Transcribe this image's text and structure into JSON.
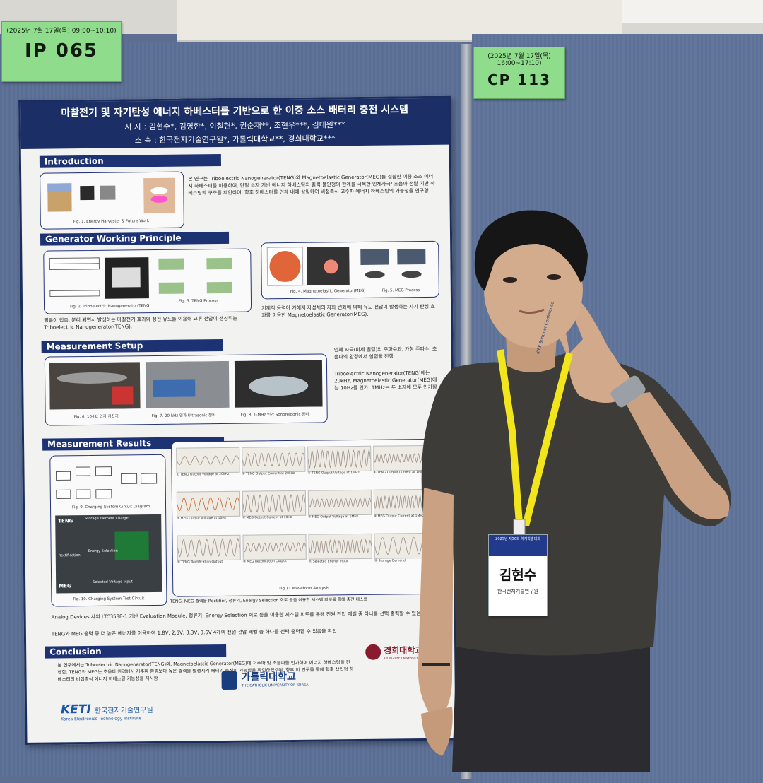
{
  "tags": {
    "left": {
      "date": "(2025년 7월 17일(목) 09:00~10:10)",
      "code": "IP 065"
    },
    "right": {
      "date": "(2025년 7월 17일(목) 16:00~17:10)",
      "code": "CP 113"
    }
  },
  "poster": {
    "title": "마찰전기 및 자기탄성 에너지 하베스터를 기반으로 한 이중 소스 배터리 충전 시스템",
    "authors": "저 자 : 김현수*, 김영한*, 이철현*, 권순재**, 조현우***, 김대원***",
    "affiliation": "소 속 : 한국전자기술연구원*, 가톨릭대학교**, 경희대학교***",
    "sections": {
      "intro": "Introduction",
      "principle": "Generator Working Principle",
      "setup": "Measurement Setup",
      "results": "Measurement Results",
      "conclusion": "Conclusion"
    },
    "intro_text": "본 연구는 Triboelectric Nanogenerator(TENG)와 Magnetoelastic Generator(MEG)를 결합한 이중 소스 에너지 하베스터를 이용하여, 단일 소자 기반 에너지 하베스팅의 출력 불안정의 한계를 극복한 인체자극/ 초음파 전달 기반 하베스팅의 구조를 제안하며, 향후 하베스터를 인체 내에 삽입하여 비접촉식 고주파 에너지 하베스팅의 가능성을 연구함",
    "captions": {
      "fig1": "Fig. 1. Energy Harvester & Future Work",
      "fig2": "Fig. 2. Triboelectric Nanogenerator(TENG)",
      "fig3": "Fig. 3. TENG Process",
      "fig4": "Fig. 4. Magnetoelastic Generator(MEG)",
      "fig5": "Fig. 5. MEG Process",
      "fig6": "Fig. 6. 10-Hz 인가 가진기",
      "fig7": "Fig. 7. 20-kHz 인가 Ultrasonic 장비",
      "fig8": "Fig. 8. 1-MHz 인가 Sonoreidonic 장비",
      "fig9": "Fig. 9. Charging System Circuit Diagram",
      "fig10": "Fig. 10. Charging System Test Circuit",
      "fig11": "Fig.11 Waveform Analysis"
    },
    "teng_text": "필름이 접촉, 분리 되면서 발생하는 마찰전기 효과와 정전 유도를 이용해 교류 전압이 생성되는 Triboelectric Nanogenerator(TENG).",
    "meg_text": "기계적 응력이 가해져 자성체의 자화 변화에 의해 유도 전압이 발생하는 자기 탄성 효과를 이용한 Magnetoelastic Generator(MEG).",
    "setup_text_1": "인체 자극(미세 떨림)의 주파수와, 가청 주파수, 초음파의 환경에서 실험을 진행",
    "setup_text_2": "Triboelectric Nanogenerator(TENG)에는 20kHz, Magnetoelastic Generator(MEG)에는 10Hz를 인가, 1MHz는 두 소자에 모두 인가함",
    "circuit_labels": {
      "teng": "TENG",
      "meg": "MEG",
      "storage": "Storage Element Charge",
      "rectification": "Rectification",
      "energy_selection": "Energy Selection",
      "selected_voltage": "Selected Voltage Input"
    },
    "wave_captions": [
      "① TENG Output Voltage at 20kHz",
      "② TENG Output Current at 20kHz",
      "③ TENG Output Voltage at 1MHz",
      "④ TENG Output Current at 1MHz",
      "⑤ MEG Output Voltage at 10Hz",
      "⑥ MEG Output Current at 10Hz",
      "⑦ MEG Output Voltage at 1MHz",
      "⑧ MEG Output Current at 1MHz",
      "⑨ TENG Rectification Output",
      "⑩ MEG Rectification Output",
      "⑪ Selected Energy Input",
      "⑫ Storage Demand"
    ],
    "results_text_1": "TENG, MEG 출력을 Rectifier, 정류기, Energy Selection 회로 등을 이용한 시스템 회로를 통해 충전 테스트",
    "results_text_2": "Analog Devices 사의 LTC3588-1 기반 Evaluation Module, 정류기, Energy Selection 회로 등을 이용한 시스템 회로를 통해 전원 전압 레벨 중 하나를 선택 출력할 수 있음을 확인",
    "results_text_3": "TENG와 MEG 출력 중 더 높은 에너지를 이용하여 1.8V, 2.5V, 3.3V, 3.6V 4개의 전원 전압 레벨 중 하나를 선택 출력할 수 있음을 확인",
    "conclusion_text": "본 연구에서는 Triboelectric Nanogenerator(TENG)와, Magnetoelastic Generator(MEG)에 저주파 및 초음파를 인가하여 에너지 하베스팅을 진행함. TENG와 MEG는 초음파 환경에서 저주파 환경보다 높은 출력을 발생시켜 배터리 충전이 가능함을 확인하였으며, 향후 이 연구를 통해 향후 삽입형 하베스터의 비접촉식 에너지 하베스팅 가능성을 제시함",
    "logos": {
      "keti": "KETI",
      "keti_kr": "한국전자기술연구원",
      "keti_en": "Korea Electronics Technology Institute",
      "catholic": "가톨릭대학교",
      "catholic_en": "THE CATHOLIC UNIVERSITY OF KOREA",
      "kyunghee": "경희대학교",
      "kyunghee_en": "KYUNG HEE UNIVERSITY"
    }
  },
  "badge": {
    "header": "2025년 제56회 하계학술대회",
    "name": "김현수",
    "org": "한국전자기술연구원"
  },
  "lanyard": {
    "text": "KIEE Summer Conference"
  },
  "colors": {
    "board": "#5d6f91",
    "tag": "#8fdc8c",
    "poster_navy": "#1b2f66",
    "lanyard": "#f2e51c",
    "shirt": "#3d3c38"
  }
}
